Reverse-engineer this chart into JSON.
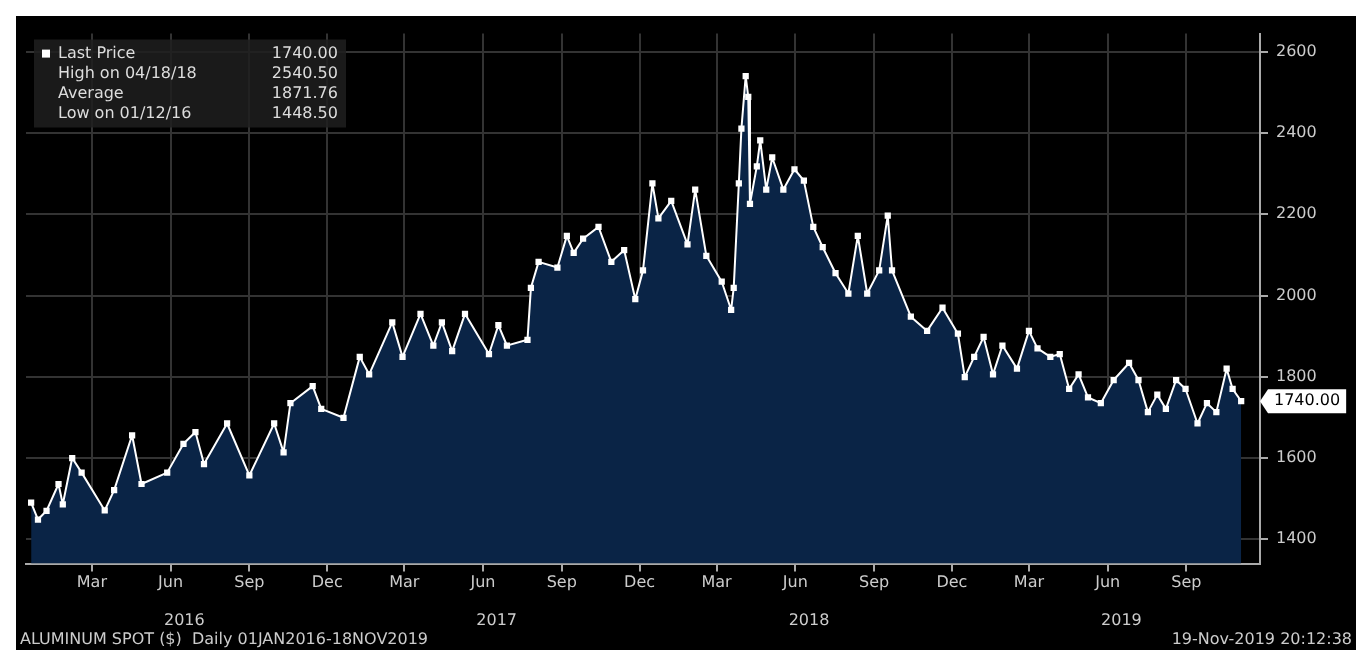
{
  "chart_data": {
    "type": "area",
    "x": [
      "2016-01-04",
      "2016-01-12",
      "2016-01-22",
      "2016-02-05",
      "2016-02-10",
      "2016-02-21",
      "2016-03-03",
      "2016-03-30",
      "2016-04-10",
      "2016-05-01",
      "2016-05-12",
      "2016-06-11",
      "2016-06-30",
      "2016-07-14",
      "2016-07-24",
      "2016-08-20",
      "2016-09-15",
      "2016-10-14",
      "2016-10-25",
      "2016-11-02",
      "2016-11-28",
      "2016-12-08",
      "2017-01-03",
      "2017-01-22",
      "2017-02-02",
      "2017-03-01",
      "2017-03-13",
      "2017-04-03",
      "2017-04-18",
      "2017-04-28",
      "2017-05-10",
      "2017-05-25",
      "2017-06-22",
      "2017-07-03",
      "2017-07-13",
      "2017-08-06",
      "2017-08-10",
      "2017-08-19",
      "2017-09-10",
      "2017-09-21",
      "2017-09-29",
      "2017-10-10",
      "2017-10-28",
      "2017-11-12",
      "2017-11-27",
      "2017-12-10",
      "2017-12-19",
      "2017-12-30",
      "2018-01-06",
      "2018-01-21",
      "2018-02-09",
      "2018-02-18",
      "2018-03-03",
      "2018-03-21",
      "2018-04-01",
      "2018-04-04",
      "2018-04-10",
      "2018-04-13",
      "2018-04-18",
      "2018-04-21",
      "2018-04-23",
      "2018-05-01",
      "2018-05-05",
      "2018-05-12",
      "2018-05-19",
      "2018-06-01",
      "2018-06-14",
      "2018-06-25",
      "2018-07-06",
      "2018-07-17",
      "2018-08-01",
      "2018-08-16",
      "2018-08-27",
      "2018-09-07",
      "2018-09-21",
      "2018-10-01",
      "2018-10-06",
      "2018-10-28",
      "2018-11-16",
      "2018-12-04",
      "2018-12-22",
      "2018-12-30",
      "2019-01-10",
      "2019-01-21",
      "2019-02-01",
      "2019-02-12",
      "2019-03-01",
      "2019-03-15",
      "2019-03-25",
      "2019-04-09",
      "2019-04-20",
      "2019-05-01",
      "2019-05-12",
      "2019-05-23",
      "2019-06-07",
      "2019-06-22",
      "2019-07-10",
      "2019-07-21",
      "2019-08-01",
      "2019-08-12",
      "2019-08-22",
      "2019-09-03",
      "2019-09-14",
      "2019-09-28",
      "2019-10-09",
      "2019-10-20",
      "2019-11-01",
      "2019-11-08",
      "2019-11-18"
    ],
    "series": [
      {
        "name": "Last Price",
        "color": "#ffffff",
        "values": [
          1490,
          1448.5,
          1470,
          1536,
          1486,
          1600,
          1564,
          1471,
          1521,
          1656,
          1536,
          1564,
          1635,
          1664,
          1585,
          1685,
          1557,
          1685,
          1614,
          1735,
          1777,
          1721,
          1699,
          1849,
          1806,
          1934,
          1849,
          1955,
          1877,
          1934,
          1863,
          1955,
          1856,
          1927,
          1877,
          1891,
          2019,
          2083,
          2069,
          2147,
          2105,
          2140,
          2169,
          2083,
          2112,
          1991,
          2062,
          2276,
          2190,
          2233,
          2126,
          2261,
          2098,
          2034,
          1965,
          2019,
          2276,
          2411,
          2540.5,
          2489,
          2226,
          2318,
          2382,
          2261,
          2340,
          2261,
          2311,
          2283,
          2169,
          2119,
          2055,
          2005,
          2147,
          2005,
          2062,
          2197,
          2062,
          1948,
          1913,
          1970,
          1906,
          1799,
          1849,
          1898,
          1806,
          1877,
          1820,
          1913,
          1870,
          1849,
          1856,
          1770,
          1806,
          1749,
          1735,
          1792,
          1834,
          1792,
          1713,
          1756,
          1721,
          1792,
          1770,
          1685,
          1735,
          1713,
          1820,
          1770,
          1740
        ]
      }
    ],
    "xlim": [
      "2015-12-29",
      "2019-12-10"
    ],
    "xticks": [
      {
        "value": "2016-03-15",
        "label": "Mar"
      },
      {
        "value": "2016-06-15",
        "label": "Jun"
      },
      {
        "value": "2016-09-15",
        "label": "Sep"
      },
      {
        "value": "2016-12-15",
        "label": "Dec"
      },
      {
        "value": "2017-03-15",
        "label": "Mar"
      },
      {
        "value": "2017-06-15",
        "label": "Jun"
      },
      {
        "value": "2017-09-15",
        "label": "Sep"
      },
      {
        "value": "2017-12-15",
        "label": "Dec"
      },
      {
        "value": "2018-03-15",
        "label": "Mar"
      },
      {
        "value": "2018-06-15",
        "label": "Jun"
      },
      {
        "value": "2018-09-15",
        "label": "Sep"
      },
      {
        "value": "2018-12-15",
        "label": "Dec"
      },
      {
        "value": "2019-03-15",
        "label": "Mar"
      },
      {
        "value": "2019-06-15",
        "label": "Jun"
      },
      {
        "value": "2019-09-15",
        "label": "Sep"
      }
    ],
    "x2lim": [
      "2015-12-29",
      "2019-12-10"
    ],
    "x2ticks": [
      {
        "value": "2016-07-01",
        "label": "2016"
      },
      {
        "value": "2017-07-01",
        "label": "2017"
      },
      {
        "value": "2018-07-01",
        "label": "2018"
      },
      {
        "value": "2019-07-01",
        "label": "2019"
      }
    ],
    "ylim": [
      1340,
      2645
    ],
    "yticks": [
      1400,
      1600,
      1800,
      2000,
      2200,
      2400,
      2600
    ],
    "grid": true,
    "legend": "top left",
    "marker": "square",
    "annotations": [
      {
        "text": "1740.00",
        "x": "2019-11-18",
        "y": 1740
      },
      "High on 04/18/18 2540.50",
      "Average 1871.76",
      "Low on 01/12/16 1448.50",
      "ALUMINUM SPOT ($)  Daily 01JAN2016-18NOV2019",
      "19-Nov-2019 20:12:38"
    ]
  }
}
